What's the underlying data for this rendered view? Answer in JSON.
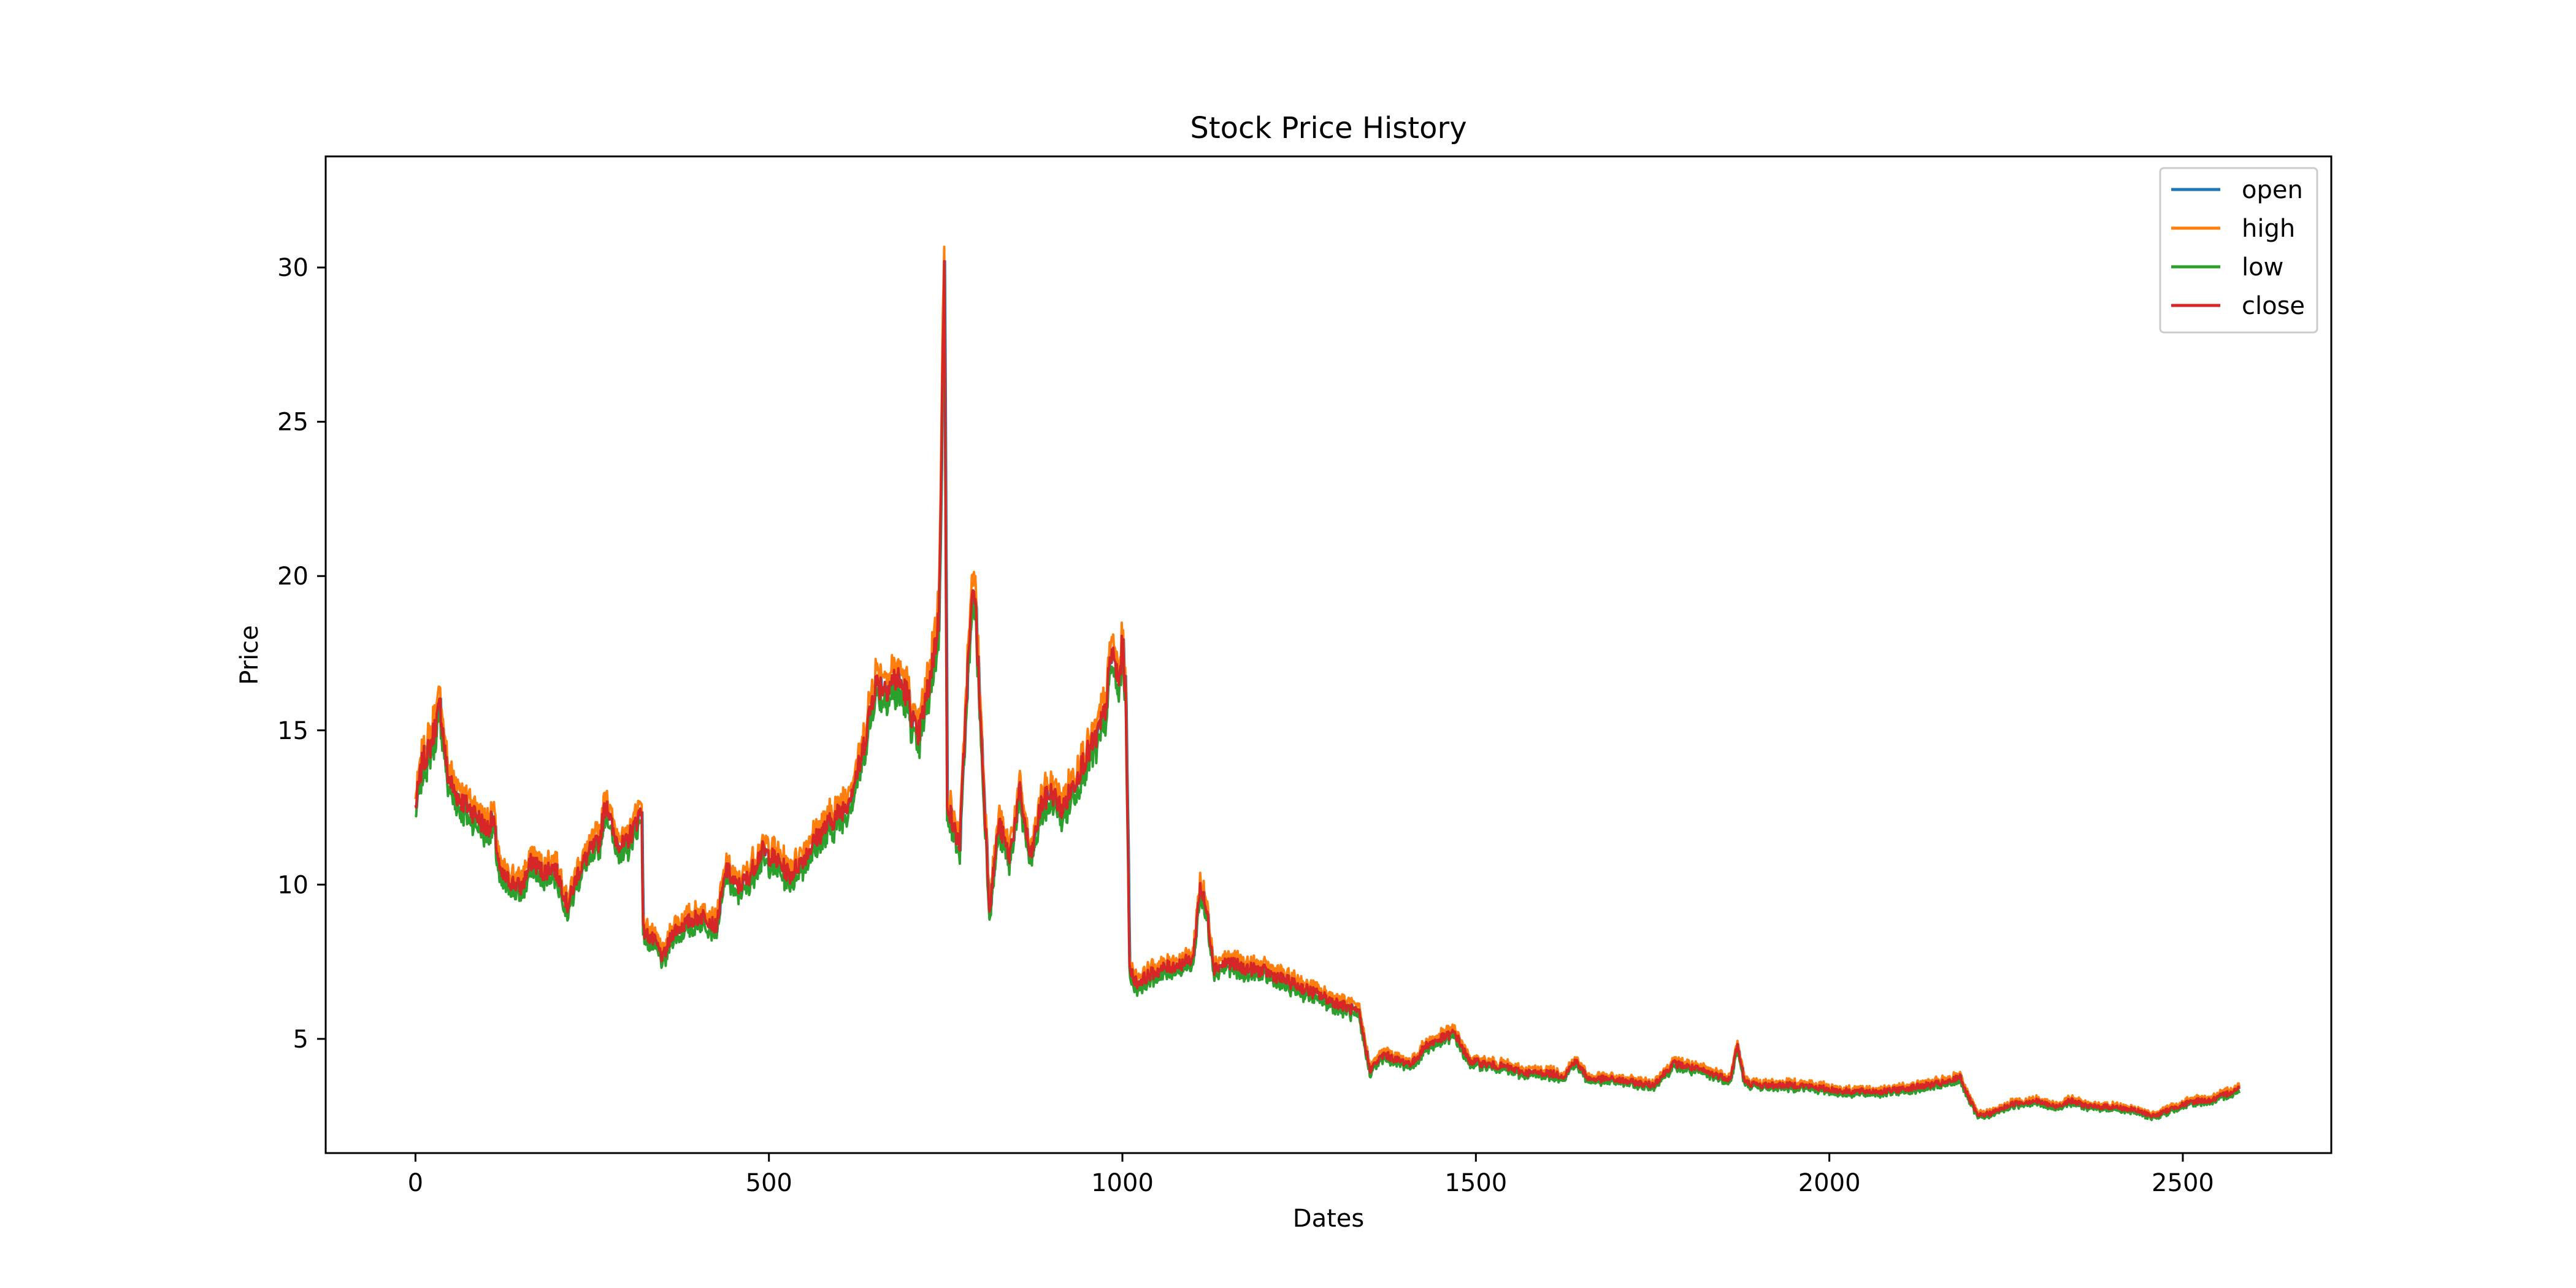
{
  "chart_data": {
    "type": "line",
    "title": "Stock Price History",
    "xlabel": "Dates",
    "ylabel": "Price",
    "xlim": [
      -127,
      2710
    ],
    "ylim": [
      1.3,
      33.6
    ],
    "xticks": [
      0,
      500,
      1000,
      1500,
      2000,
      2500
    ],
    "yticks": [
      5,
      10,
      15,
      20,
      25,
      30
    ],
    "legend_position": "top-right",
    "grid": false,
    "x_end": 2580,
    "series": [
      {
        "name": "open",
        "color": "#1f77b4"
      },
      {
        "name": "high",
        "color": "#ff7f0e"
      },
      {
        "name": "low",
        "color": "#2ca02c"
      },
      {
        "name": "close",
        "color": "#d62728"
      }
    ],
    "close_points": [
      [
        0,
        12.5
      ],
      [
        10,
        14.0
      ],
      [
        20,
        14.4
      ],
      [
        35,
        15.8
      ],
      [
        45,
        13.6
      ],
      [
        55,
        13.0
      ],
      [
        70,
        12.6
      ],
      [
        85,
        12.3
      ],
      [
        100,
        11.8
      ],
      [
        110,
        12.1
      ],
      [
        120,
        10.3
      ],
      [
        135,
        10.1
      ],
      [
        150,
        9.9
      ],
      [
        165,
        10.8
      ],
      [
        180,
        10.4
      ],
      [
        195,
        10.6
      ],
      [
        205,
        10.1
      ],
      [
        215,
        9.3
      ],
      [
        230,
        10.4
      ],
      [
        245,
        11.0
      ],
      [
        260,
        11.4
      ],
      [
        270,
        12.8
      ],
      [
        280,
        11.6
      ],
      [
        295,
        11.2
      ],
      [
        310,
        11.9
      ],
      [
        320,
        12.5
      ],
      [
        322,
        8.5
      ],
      [
        340,
        8.1
      ],
      [
        350,
        7.6
      ],
      [
        365,
        8.5
      ],
      [
        380,
        8.7
      ],
      [
        395,
        8.9
      ],
      [
        410,
        9.0
      ],
      [
        425,
        8.6
      ],
      [
        440,
        10.5
      ],
      [
        455,
        9.9
      ],
      [
        470,
        10.2
      ],
      [
        490,
        11.1
      ],
      [
        510,
        10.8
      ],
      [
        530,
        10.3
      ],
      [
        550,
        10.9
      ],
      [
        570,
        11.6
      ],
      [
        590,
        12.1
      ],
      [
        610,
        12.6
      ],
      [
        630,
        14.0
      ],
      [
        650,
        16.5
      ],
      [
        665,
        16.4
      ],
      [
        680,
        16.7
      ],
      [
        695,
        16.2
      ],
      [
        710,
        14.7
      ],
      [
        725,
        16.3
      ],
      [
        740,
        18.5
      ],
      [
        748,
        30.0
      ],
      [
        752,
        12.8
      ],
      [
        760,
        11.9
      ],
      [
        770,
        11.3
      ],
      [
        780,
        16.5
      ],
      [
        790,
        20.0
      ],
      [
        800,
        15.0
      ],
      [
        812,
        9.2
      ],
      [
        825,
        12.0
      ],
      [
        840,
        10.9
      ],
      [
        855,
        13.0
      ],
      [
        870,
        10.8
      ],
      [
        885,
        12.6
      ],
      [
        900,
        13.0
      ],
      [
        915,
        12.4
      ],
      [
        930,
        13.2
      ],
      [
        945,
        14.0
      ],
      [
        960,
        14.6
      ],
      [
        975,
        15.5
      ],
      [
        985,
        17.6
      ],
      [
        995,
        16.5
      ],
      [
        1000,
        17.8
      ],
      [
        1005,
        16.0
      ],
      [
        1010,
        7.3
      ],
      [
        1020,
        6.8
      ],
      [
        1040,
        7.1
      ],
      [
        1060,
        7.3
      ],
      [
        1080,
        7.4
      ],
      [
        1100,
        7.6
      ],
      [
        1110,
        10.0
      ],
      [
        1120,
        9.0
      ],
      [
        1130,
        7.3
      ],
      [
        1150,
        7.5
      ],
      [
        1170,
        7.3
      ],
      [
        1200,
        7.2
      ],
      [
        1230,
        6.9
      ],
      [
        1260,
        6.6
      ],
      [
        1290,
        6.3
      ],
      [
        1320,
        6.0
      ],
      [
        1335,
        5.8
      ],
      [
        1350,
        4.0
      ],
      [
        1370,
        4.5
      ],
      [
        1390,
        4.3
      ],
      [
        1410,
        4.2
      ],
      [
        1430,
        4.8
      ],
      [
        1450,
        5.0
      ],
      [
        1470,
        5.2
      ],
      [
        1490,
        4.3
      ],
      [
        1510,
        4.2
      ],
      [
        1540,
        4.1
      ],
      [
        1570,
        3.9
      ],
      [
        1600,
        3.9
      ],
      [
        1625,
        3.8
      ],
      [
        1640,
        4.3
      ],
      [
        1660,
        3.7
      ],
      [
        1690,
        3.7
      ],
      [
        1720,
        3.6
      ],
      [
        1750,
        3.5
      ],
      [
        1780,
        4.2
      ],
      [
        1800,
        4.1
      ],
      [
        1830,
        3.9
      ],
      [
        1860,
        3.7
      ],
      [
        1870,
        4.8
      ],
      [
        1880,
        3.6
      ],
      [
        1900,
        3.5
      ],
      [
        1930,
        3.5
      ],
      [
        1960,
        3.5
      ],
      [
        1990,
        3.4
      ],
      [
        2020,
        3.3
      ],
      [
        2050,
        3.3
      ],
      [
        2080,
        3.3
      ],
      [
        2110,
        3.4
      ],
      [
        2140,
        3.5
      ],
      [
        2170,
        3.6
      ],
      [
        2185,
        3.8
      ],
      [
        2195,
        3.2
      ],
      [
        2210,
        2.5
      ],
      [
        2230,
        2.6
      ],
      [
        2260,
        2.9
      ],
      [
        2290,
        3.0
      ],
      [
        2320,
        2.8
      ],
      [
        2340,
        3.0
      ],
      [
        2370,
        2.8
      ],
      [
        2400,
        2.8
      ],
      [
        2430,
        2.7
      ],
      [
        2460,
        2.5
      ],
      [
        2490,
        2.8
      ],
      [
        2520,
        3.0
      ],
      [
        2540,
        3.0
      ],
      [
        2560,
        3.2
      ],
      [
        2580,
        3.4
      ]
    ]
  }
}
